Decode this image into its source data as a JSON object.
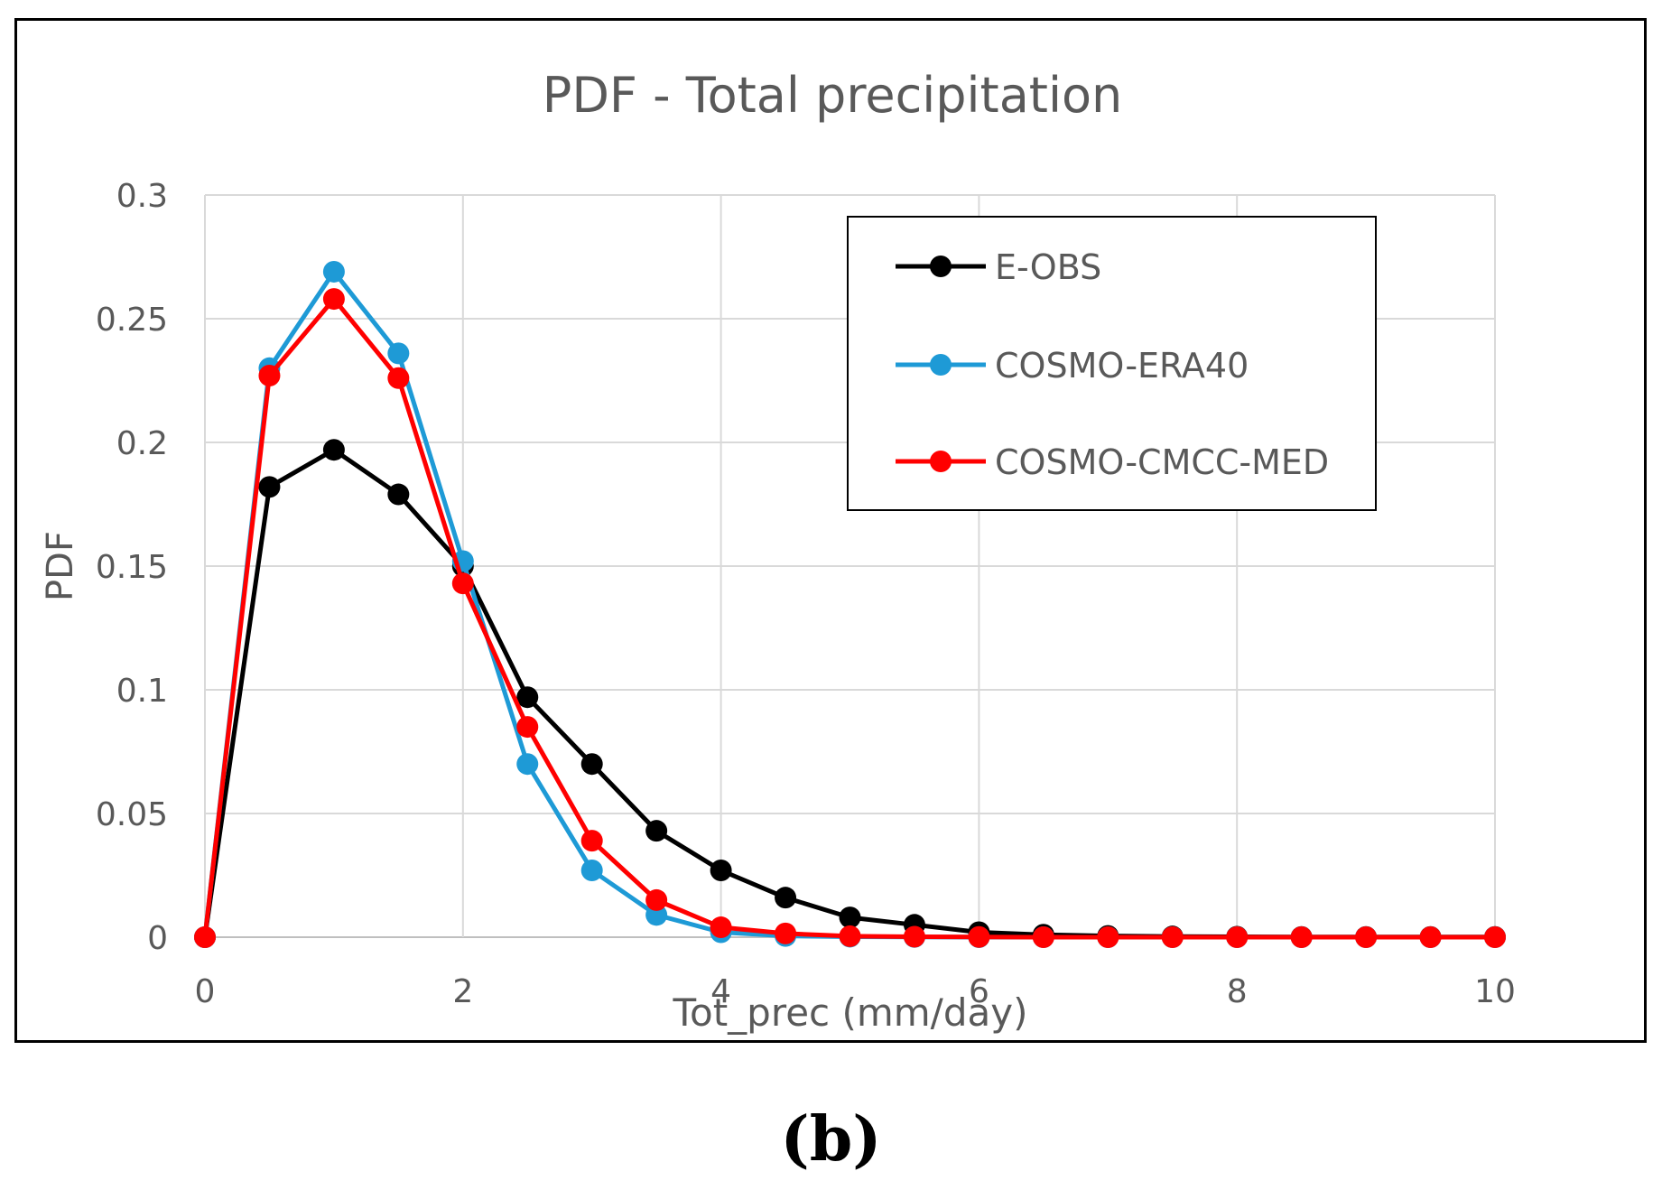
{
  "chart_data": {
    "type": "line",
    "title": "PDF - Total precipitation",
    "xlabel": "Tot_prec (mm/day)",
    "ylabel": "PDF",
    "xlim": [
      0,
      10
    ],
    "ylim": [
      0,
      0.3
    ],
    "xticks": [
      "0",
      "2",
      "4",
      "6",
      "8",
      "10"
    ],
    "xtick_values": [
      0,
      2,
      4,
      6,
      8,
      10
    ],
    "yticks": [
      "0",
      "0.05",
      "0.1",
      "0.15",
      "0.2",
      "0.25",
      "0.3"
    ],
    "ytick_values": [
      0,
      0.05,
      0.1,
      0.15,
      0.2,
      0.25,
      0.3
    ],
    "grid": true,
    "legend_position": "top-right",
    "x": [
      0,
      0.5,
      1,
      1.5,
      2,
      2.5,
      3,
      3.5,
      4,
      4.5,
      5,
      5.5,
      6,
      6.5,
      7,
      7.5,
      8,
      8.5,
      9,
      9.5,
      10
    ],
    "series": [
      {
        "name": "E-OBS",
        "color": "#000000",
        "values": [
          0,
          0.182,
          0.197,
          0.179,
          0.15,
          0.097,
          0.07,
          0.043,
          0.027,
          0.016,
          0.008,
          0.005,
          0.002,
          0.001,
          0.0005,
          0.0003,
          0.0002,
          0.0001,
          0.0001,
          0.0001,
          0.0001
        ]
      },
      {
        "name": "COSMO-ERA40",
        "color": "#1e9ad6",
        "values": [
          0,
          0.23,
          0.269,
          0.236,
          0.152,
          0.07,
          0.027,
          0.009,
          0.002,
          0.0005,
          0.0002,
          0.0001,
          0,
          0,
          0,
          0,
          0,
          0,
          0,
          0,
          0
        ]
      },
      {
        "name": "COSMO-CMCC-MED",
        "color": "#ff0000",
        "values": [
          0,
          0.227,
          0.258,
          0.226,
          0.143,
          0.085,
          0.039,
          0.015,
          0.004,
          0.0015,
          0.0004,
          0.0002,
          0.0001,
          0,
          0,
          0,
          0,
          0,
          0,
          0,
          0
        ]
      }
    ]
  },
  "caption": {
    "label": "(b)"
  }
}
